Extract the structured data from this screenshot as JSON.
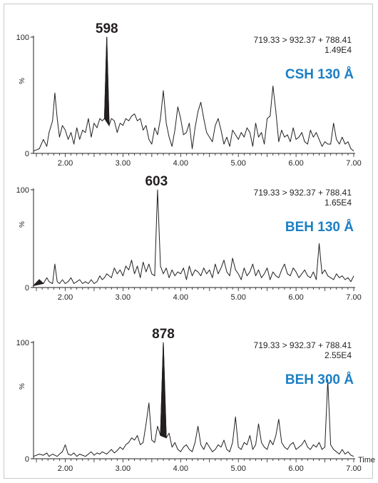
{
  "chart_data": [
    {
      "type": "line",
      "column_label": "CSH 130 Å",
      "transition": "719.33 > 932.37 + 788.41",
      "intensity": "1.49E4",
      "peak": {
        "label": "598",
        "x": 2.72
      },
      "ylabel": "%",
      "yticks": [
        "0",
        "100"
      ],
      "xticks": [
        "2.00",
        "3.00",
        "4.00",
        "5.00",
        "6.00",
        "7.00"
      ],
      "xlim": [
        1.45,
        7.0
      ],
      "ylim": [
        0,
        100
      ],
      "series": [
        {
          "x": [
            1.45,
            1.55,
            1.62,
            1.68,
            1.72,
            1.78,
            1.82,
            1.86,
            1.9,
            1.95,
            2.0,
            2.05,
            2.1,
            2.15,
            2.2,
            2.25,
            2.3,
            2.35,
            2.4,
            2.45,
            2.5,
            2.55,
            2.6,
            2.64,
            2.68,
            2.72,
            2.76,
            2.8,
            2.85,
            2.9,
            2.95,
            3.0,
            3.05,
            3.1,
            3.15,
            3.2,
            3.25,
            3.3,
            3.35,
            3.4,
            3.45,
            3.5,
            3.55,
            3.6,
            3.65,
            3.7,
            3.75,
            3.8,
            3.85,
            3.9,
            3.95,
            4.0,
            4.05,
            4.1,
            4.15,
            4.2,
            4.25,
            4.3,
            4.35,
            4.4,
            4.45,
            4.5,
            4.55,
            4.6,
            4.65,
            4.7,
            4.75,
            4.8,
            4.85,
            4.9,
            4.95,
            5.0,
            5.05,
            5.1,
            5.15,
            5.2,
            5.25,
            5.3,
            5.35,
            5.4,
            5.45,
            5.5,
            5.55,
            5.6,
            5.65,
            5.7,
            5.75,
            5.8,
            5.85,
            5.9,
            5.95,
            6.0,
            6.05,
            6.1,
            6.15,
            6.2,
            6.25,
            6.3,
            6.35,
            6.4,
            6.45,
            6.5,
            6.55,
            6.6,
            6.65,
            6.7,
            6.75,
            6.8,
            6.85,
            6.9,
            6.95,
            7.0
          ],
          "y": [
            2,
            4,
            12,
            6,
            18,
            28,
            52,
            30,
            14,
            24,
            20,
            12,
            18,
            8,
            22,
            12,
            20,
            18,
            30,
            14,
            26,
            22,
            30,
            28,
            30,
            100,
            24,
            30,
            28,
            18,
            26,
            24,
            30,
            28,
            32,
            34,
            28,
            30,
            20,
            24,
            12,
            8,
            22,
            16,
            30,
            54,
            26,
            14,
            6,
            20,
            40,
            30,
            16,
            18,
            26,
            4,
            22,
            36,
            44,
            30,
            18,
            14,
            10,
            24,
            30,
            20,
            8,
            14,
            6,
            20,
            16,
            12,
            18,
            14,
            22,
            18,
            6,
            26,
            14,
            18,
            8,
            30,
            32,
            58,
            36,
            10,
            20,
            14,
            16,
            10,
            22,
            12,
            14,
            18,
            10,
            8,
            20,
            14,
            18,
            12,
            6,
            10,
            8,
            8,
            26,
            12,
            8,
            14,
            8,
            10,
            4,
            2
          ]
        }
      ]
    },
    {
      "type": "line",
      "column_label": "BEH 130 Å",
      "transition": "719.33 > 932.37 + 788.41",
      "intensity": "1.65E4",
      "peak": {
        "label": "603",
        "x": 3.58
      },
      "ylabel": "%",
      "yticks": [
        "0",
        "100"
      ],
      "xticks": [
        "2.00",
        "3.00",
        "4.00",
        "5.00",
        "6.00",
        "7.00"
      ],
      "xlim": [
        1.45,
        7.0
      ],
      "ylim": [
        0,
        100
      ],
      "series": [
        {
          "x": [
            1.45,
            1.55,
            1.62,
            1.68,
            1.72,
            1.78,
            1.82,
            1.86,
            1.9,
            1.95,
            2.0,
            2.05,
            2.1,
            2.15,
            2.2,
            2.25,
            2.3,
            2.35,
            2.4,
            2.45,
            2.5,
            2.55,
            2.6,
            2.64,
            2.68,
            2.72,
            2.76,
            2.8,
            2.85,
            2.9,
            2.95,
            3.0,
            3.05,
            3.1,
            3.15,
            3.2,
            3.25,
            3.3,
            3.35,
            3.4,
            3.45,
            3.5,
            3.55,
            3.6,
            3.65,
            3.7,
            3.75,
            3.8,
            3.85,
            3.9,
            3.95,
            4.0,
            4.05,
            4.1,
            4.15,
            4.2,
            4.25,
            4.3,
            4.35,
            4.4,
            4.45,
            4.5,
            4.55,
            4.6,
            4.65,
            4.7,
            4.75,
            4.8,
            4.85,
            4.9,
            4.95,
            5.0,
            5.05,
            5.1,
            5.15,
            5.2,
            5.25,
            5.3,
            5.35,
            5.4,
            5.45,
            5.5,
            5.55,
            5.6,
            5.65,
            5.7,
            5.75,
            5.8,
            5.85,
            5.9,
            5.95,
            6.0,
            6.05,
            6.1,
            6.15,
            6.2,
            6.25,
            6.3,
            6.35,
            6.4,
            6.45,
            6.5,
            6.55,
            6.6,
            6.65,
            6.7,
            6.75,
            6.8,
            6.85,
            6.9,
            6.95,
            7.0
          ],
          "y": [
            2,
            8,
            4,
            10,
            6,
            4,
            24,
            6,
            4,
            8,
            4,
            6,
            10,
            4,
            6,
            8,
            4,
            6,
            4,
            8,
            4,
            6,
            12,
            8,
            10,
            14,
            12,
            10,
            20,
            14,
            18,
            12,
            22,
            18,
            28,
            14,
            22,
            10,
            26,
            16,
            24,
            14,
            12,
            100,
            22,
            14,
            20,
            10,
            18,
            12,
            16,
            14,
            20,
            8,
            22,
            12,
            18,
            16,
            12,
            20,
            14,
            18,
            10,
            24,
            14,
            20,
            28,
            16,
            12,
            30,
            18,
            14,
            8,
            20,
            12,
            16,
            24,
            12,
            18,
            10,
            14,
            20,
            8,
            16,
            12,
            10,
            18,
            24,
            14,
            12,
            20,
            16,
            10,
            14,
            18,
            12,
            10,
            16,
            8,
            45,
            14,
            18,
            12,
            10,
            8,
            14,
            10,
            12,
            8,
            10,
            6,
            12
          ]
        }
      ]
    },
    {
      "type": "line",
      "column_label": "BEH 300 Å",
      "transition": "719.33 > 932.37 + 788.41",
      "intensity": "2.55E4",
      "peak": {
        "label": "878",
        "x": 3.7
      },
      "ylabel": "%",
      "yticks": [
        "0",
        "100"
      ],
      "xticks": [
        "2.00",
        "3.00",
        "4.00",
        "5.00",
        "6.00",
        "7.00"
      ],
      "xlim": [
        1.45,
        7.0
      ],
      "ylim": [
        0,
        100
      ],
      "xlabel": "Time",
      "series": [
        {
          "x": [
            1.45,
            1.55,
            1.62,
            1.68,
            1.72,
            1.78,
            1.82,
            1.86,
            1.9,
            1.95,
            2.0,
            2.05,
            2.1,
            2.15,
            2.2,
            2.25,
            2.3,
            2.35,
            2.4,
            2.45,
            2.5,
            2.55,
            2.6,
            2.64,
            2.68,
            2.72,
            2.76,
            2.8,
            2.85,
            2.9,
            2.95,
            3.0,
            3.05,
            3.1,
            3.15,
            3.2,
            3.25,
            3.3,
            3.35,
            3.4,
            3.45,
            3.5,
            3.55,
            3.6,
            3.65,
            3.7,
            3.75,
            3.8,
            3.85,
            3.9,
            3.95,
            4.0,
            4.05,
            4.1,
            4.15,
            4.2,
            4.25,
            4.3,
            4.35,
            4.4,
            4.45,
            4.5,
            4.55,
            4.6,
            4.65,
            4.7,
            4.75,
            4.8,
            4.85,
            4.9,
            4.95,
            5.0,
            5.05,
            5.1,
            5.15,
            5.2,
            5.25,
            5.3,
            5.35,
            5.4,
            5.45,
            5.5,
            5.55,
            5.6,
            5.65,
            5.7,
            5.75,
            5.8,
            5.85,
            5.9,
            5.95,
            6.0,
            6.05,
            6.1,
            6.15,
            6.2,
            6.25,
            6.3,
            6.35,
            6.4,
            6.45,
            6.5,
            6.55,
            6.6,
            6.65,
            6.7,
            6.75,
            6.8,
            6.85,
            6.9,
            6.95,
            7.0
          ],
          "y": [
            2,
            4,
            3,
            5,
            2,
            4,
            3,
            2,
            4,
            6,
            12,
            4,
            3,
            5,
            2,
            4,
            3,
            2,
            4,
            6,
            3,
            5,
            4,
            6,
            5,
            4,
            6,
            8,
            5,
            7,
            10,
            8,
            12,
            14,
            18,
            16,
            20,
            12,
            14,
            30,
            48,
            16,
            14,
            28,
            20,
            100,
            18,
            22,
            10,
            14,
            8,
            6,
            10,
            12,
            8,
            6,
            14,
            28,
            12,
            8,
            14,
            10,
            6,
            8,
            12,
            10,
            16,
            8,
            6,
            14,
            36,
            10,
            8,
            14,
            12,
            20,
            8,
            12,
            30,
            14,
            10,
            8,
            16,
            12,
            20,
            34,
            14,
            10,
            8,
            12,
            14,
            8,
            10,
            12,
            16,
            10,
            8,
            12,
            10,
            14,
            8,
            10,
            68,
            12,
            8,
            6,
            4,
            8,
            4,
            6,
            3,
            2
          ]
        }
      ]
    }
  ]
}
